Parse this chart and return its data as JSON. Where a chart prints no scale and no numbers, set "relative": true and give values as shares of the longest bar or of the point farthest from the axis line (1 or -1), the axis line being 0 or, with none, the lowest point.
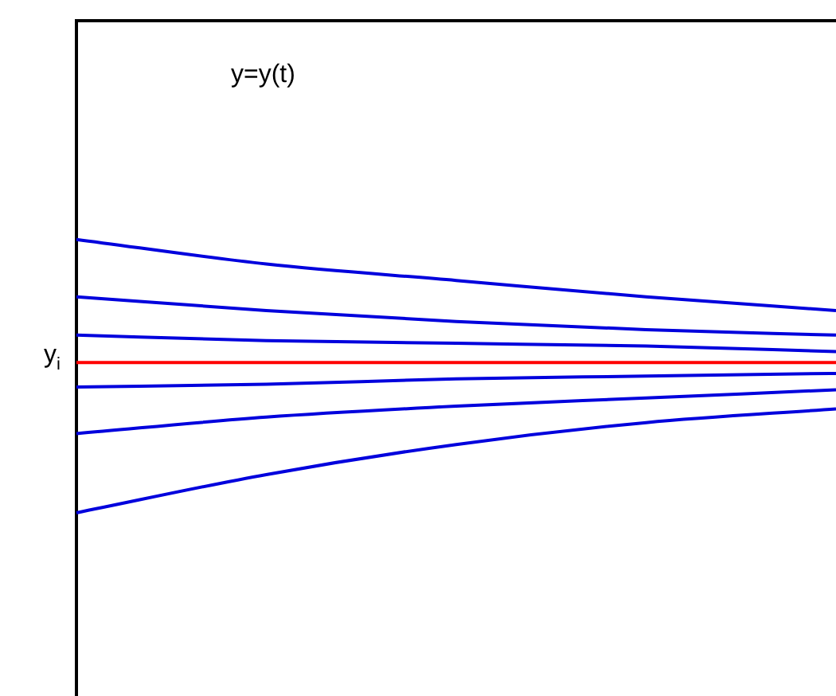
{
  "chart_data": {
    "type": "line",
    "relative": true,
    "legend": false,
    "marker": "none",
    "line_style": "solid",
    "categories": [
      null,
      null,
      null,
      null,
      null
    ],
    "series": [
      {
        "color": "#0000dd",
        "values": [
          1,
          0.91,
          0.85,
          0.79,
          0.74
        ]
      },
      {
        "color": "#0000dd",
        "values": [
          0.79,
          0.74,
          0.7,
          0.67,
          0.65
        ]
      },
      {
        "color": "#0000dd",
        "values": [
          0.65,
          0.63,
          0.62,
          0.61,
          0.59
        ]
      },
      {
        "color": "#ff0000",
        "values": [
          0.55,
          0.55,
          0.55,
          0.55,
          0.55
        ]
      },
      {
        "color": "#0000dd",
        "values": [
          0.46,
          0.47,
          0.49,
          0.5,
          0.51
        ]
      },
      {
        "color": "#0000dd",
        "values": [
          0.29,
          0.35,
          0.39,
          0.42,
          0.45
        ]
      },
      {
        "color": "#0000dd",
        "values": [
          0,
          0.14,
          0.25,
          0.33,
          0.38
        ]
      }
    ],
    "annotations": [
      "y=y(t)",
      "y$_{i}$"
    ]
  }
}
